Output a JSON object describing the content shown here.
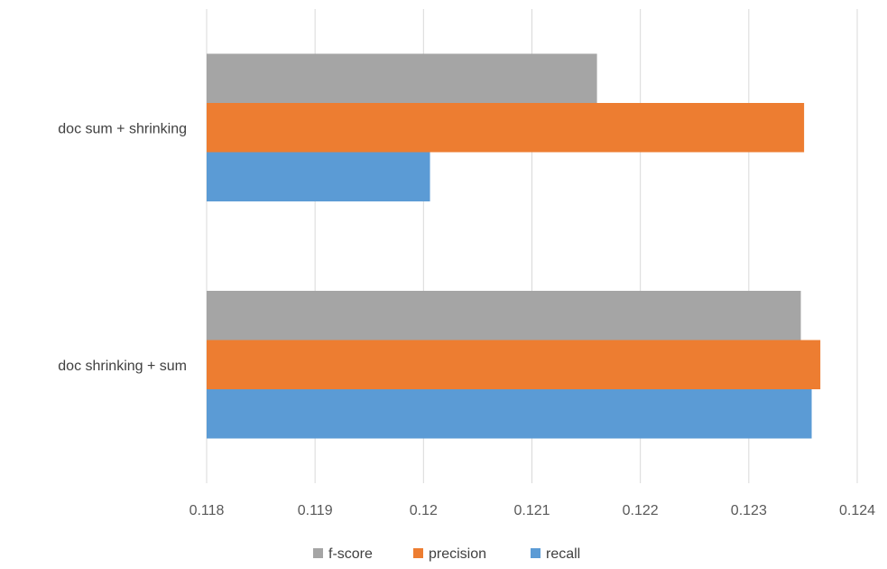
{
  "chart_data": {
    "type": "bar",
    "orientation": "horizontal",
    "categories": [
      "doc shrinking + sum",
      "doc sum + shrinking"
    ],
    "series": [
      {
        "name": "recall",
        "color": "#5b9bd5",
        "values": [
          0.12358,
          0.12006
        ]
      },
      {
        "name": "precision",
        "color": "#ed7d31",
        "values": [
          0.12366,
          0.12351
        ]
      },
      {
        "name": "f-score",
        "color": "#a5a5a5",
        "values": [
          0.12348,
          0.1216
        ]
      }
    ],
    "xlim": [
      0.118,
      0.124
    ],
    "xticks": [
      "0.118",
      "0.119",
      "0.12",
      "0.121",
      "0.122",
      "0.123",
      "0.124"
    ],
    "grid": true,
    "legend_position": "bottom",
    "legend_order": [
      "f-score",
      "precision",
      "recall"
    ]
  }
}
